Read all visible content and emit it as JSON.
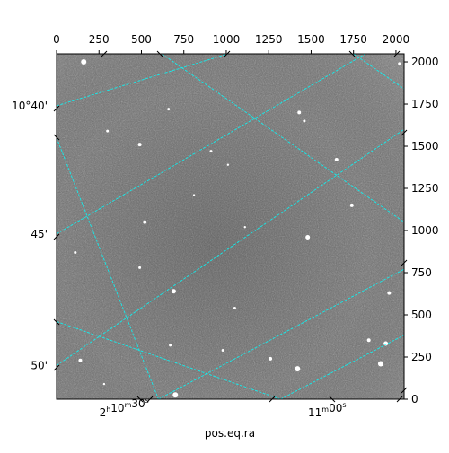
{
  "chart_data": {
    "type": "image",
    "title": "",
    "xlabel": "pos.eq.ra",
    "pixel_axes": {
      "x_range": [
        0,
        2048
      ],
      "y_range": [
        0,
        2048
      ],
      "x_ticks": [
        0,
        250,
        500,
        750,
        1000,
        1250,
        1500,
        1750,
        2000
      ],
      "y_ticks": [
        0,
        250,
        500,
        750,
        1000,
        1250,
        1500,
        1750,
        2000
      ],
      "x_tick_labels": [
        "0",
        "250",
        "500",
        "750",
        "1000",
        "1250",
        "1500",
        "1750",
        "2000"
      ],
      "y_tick_labels": [
        "0",
        "250",
        "500",
        "750",
        "1000",
        "1250",
        "1500",
        "1750",
        "2000"
      ],
      "x_ticks_position": "top",
      "y_ticks_position": "right"
    },
    "world_axes": {
      "ra_ticks": [
        {
          "x": 400,
          "y": 0,
          "h": "2",
          "m": "10",
          "s": "30"
        },
        {
          "x": 1630,
          "y": 0,
          "h": "",
          "m": "11",
          "s": "00"
        }
      ],
      "dec_ticks": [
        {
          "x": 0,
          "y": 1740,
          "label": "10°40'"
        },
        {
          "x": 0,
          "y": 980,
          "label": "45'"
        },
        {
          "x": 0,
          "y": 200,
          "label": "50'"
        }
      ]
    },
    "grid": {
      "enabled": true,
      "color": "#00ffff",
      "style": "dashed",
      "lines": [
        [
          [
            0,
            1740
          ],
          [
            1010,
            2048
          ]
        ],
        [
          [
            0,
            980
          ],
          [
            1820,
            2048
          ]
        ],
        [
          [
            0,
            200
          ],
          [
            2048,
            1600
          ]
        ],
        [
          [
            600,
            0
          ],
          [
            2048,
            770
          ]
        ],
        [
          [
            1320,
            0
          ],
          [
            2048,
            380
          ]
        ],
        [
          [
            0,
            1550
          ],
          [
            600,
            0
          ]
        ],
        [
          [
            0,
            460
          ],
          [
            1320,
            0
          ]
        ],
        [
          [
            620,
            2048
          ],
          [
            2048,
            1050
          ]
        ],
        [
          [
            1750,
            2048
          ],
          [
            2048,
            1840
          ]
        ]
      ]
    },
    "image": {
      "colormap": "gray",
      "background": "#6e6e6e",
      "stars": [
        {
          "x": 160,
          "y": 2000,
          "r": 3
        },
        {
          "x": 660,
          "y": 1720,
          "r": 1.5
        },
        {
          "x": 1430,
          "y": 1700,
          "r": 2
        },
        {
          "x": 300,
          "y": 1590,
          "r": 1.5
        },
        {
          "x": 490,
          "y": 1510,
          "r": 2
        },
        {
          "x": 910,
          "y": 1470,
          "r": 1.5
        },
        {
          "x": 1650,
          "y": 1420,
          "r": 2
        },
        {
          "x": 1010,
          "y": 1390,
          "r": 1.2
        },
        {
          "x": 810,
          "y": 1210,
          "r": 1.2
        },
        {
          "x": 1740,
          "y": 1150,
          "r": 2
        },
        {
          "x": 520,
          "y": 1050,
          "r": 2
        },
        {
          "x": 1480,
          "y": 960,
          "r": 2.5
        },
        {
          "x": 1110,
          "y": 1020,
          "r": 1.2
        },
        {
          "x": 110,
          "y": 870,
          "r": 1.5
        },
        {
          "x": 490,
          "y": 780,
          "r": 1.5
        },
        {
          "x": 690,
          "y": 640,
          "r": 2.5
        },
        {
          "x": 1050,
          "y": 540,
          "r": 1.5
        },
        {
          "x": 1960,
          "y": 630,
          "r": 2
        },
        {
          "x": 1840,
          "y": 350,
          "r": 2
        },
        {
          "x": 1940,
          "y": 330,
          "r": 2.5
        },
        {
          "x": 1910,
          "y": 210,
          "r": 3
        },
        {
          "x": 1420,
          "y": 180,
          "r": 3
        },
        {
          "x": 1260,
          "y": 240,
          "r": 2
        },
        {
          "x": 980,
          "y": 290,
          "r": 1.5
        },
        {
          "x": 670,
          "y": 320,
          "r": 1.5
        },
        {
          "x": 140,
          "y": 230,
          "r": 2
        },
        {
          "x": 280,
          "y": 90,
          "r": 1.2
        },
        {
          "x": 700,
          "y": 25,
          "r": 3
        },
        {
          "x": 2020,
          "y": 1990,
          "r": 1.5
        },
        {
          "x": 1460,
          "y": 1650,
          "r": 1.5
        }
      ]
    }
  }
}
